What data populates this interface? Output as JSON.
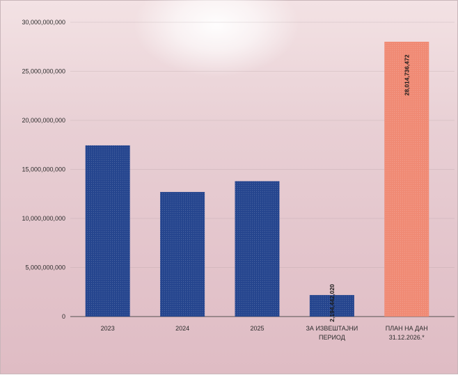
{
  "colors": {
    "bar_blue": "#25458e",
    "bar_highlight": "#f08a74",
    "gridline": "#8f7f84",
    "axis": "#444444"
  },
  "chart_data": {
    "type": "bar",
    "categories": [
      "2023",
      "2024",
      "2025",
      "ЗА ИЗВЕШТАЈНИ ПЕРИОД",
      "ПЛАН НА ДАН 31.12.2026.*"
    ],
    "category_lines": [
      [
        "2023"
      ],
      [
        "2024"
      ],
      [
        "2025"
      ],
      [
        "ЗА ИЗВЕШТАЈНИ",
        "ПЕРИОД"
      ],
      [
        "ПЛАН НА ДАН",
        "31.12.2026.*"
      ]
    ],
    "values": [
      17450000000,
      12700000000,
      13800000000,
      2194442020,
      28014736472
    ],
    "data_labels": [
      "",
      "",
      "",
      "2,194,442,020",
      "28,014,736,472"
    ],
    "ylim": [
      0,
      30000000000
    ],
    "yticks": [
      0,
      5000000000,
      10000000000,
      15000000000,
      20000000000,
      25000000000,
      30000000000
    ],
    "ytick_labels": [
      "0",
      "5,000,000,000",
      "10,000,000,000",
      "15,000,000,000",
      "20,000,000,000",
      "25,000,000,000",
      "30,000,000,000"
    ],
    "bar_colors": [
      "#25458e",
      "#25458e",
      "#25458e",
      "#25458e",
      "#f08a74"
    ],
    "grid": true,
    "legend": "none"
  }
}
